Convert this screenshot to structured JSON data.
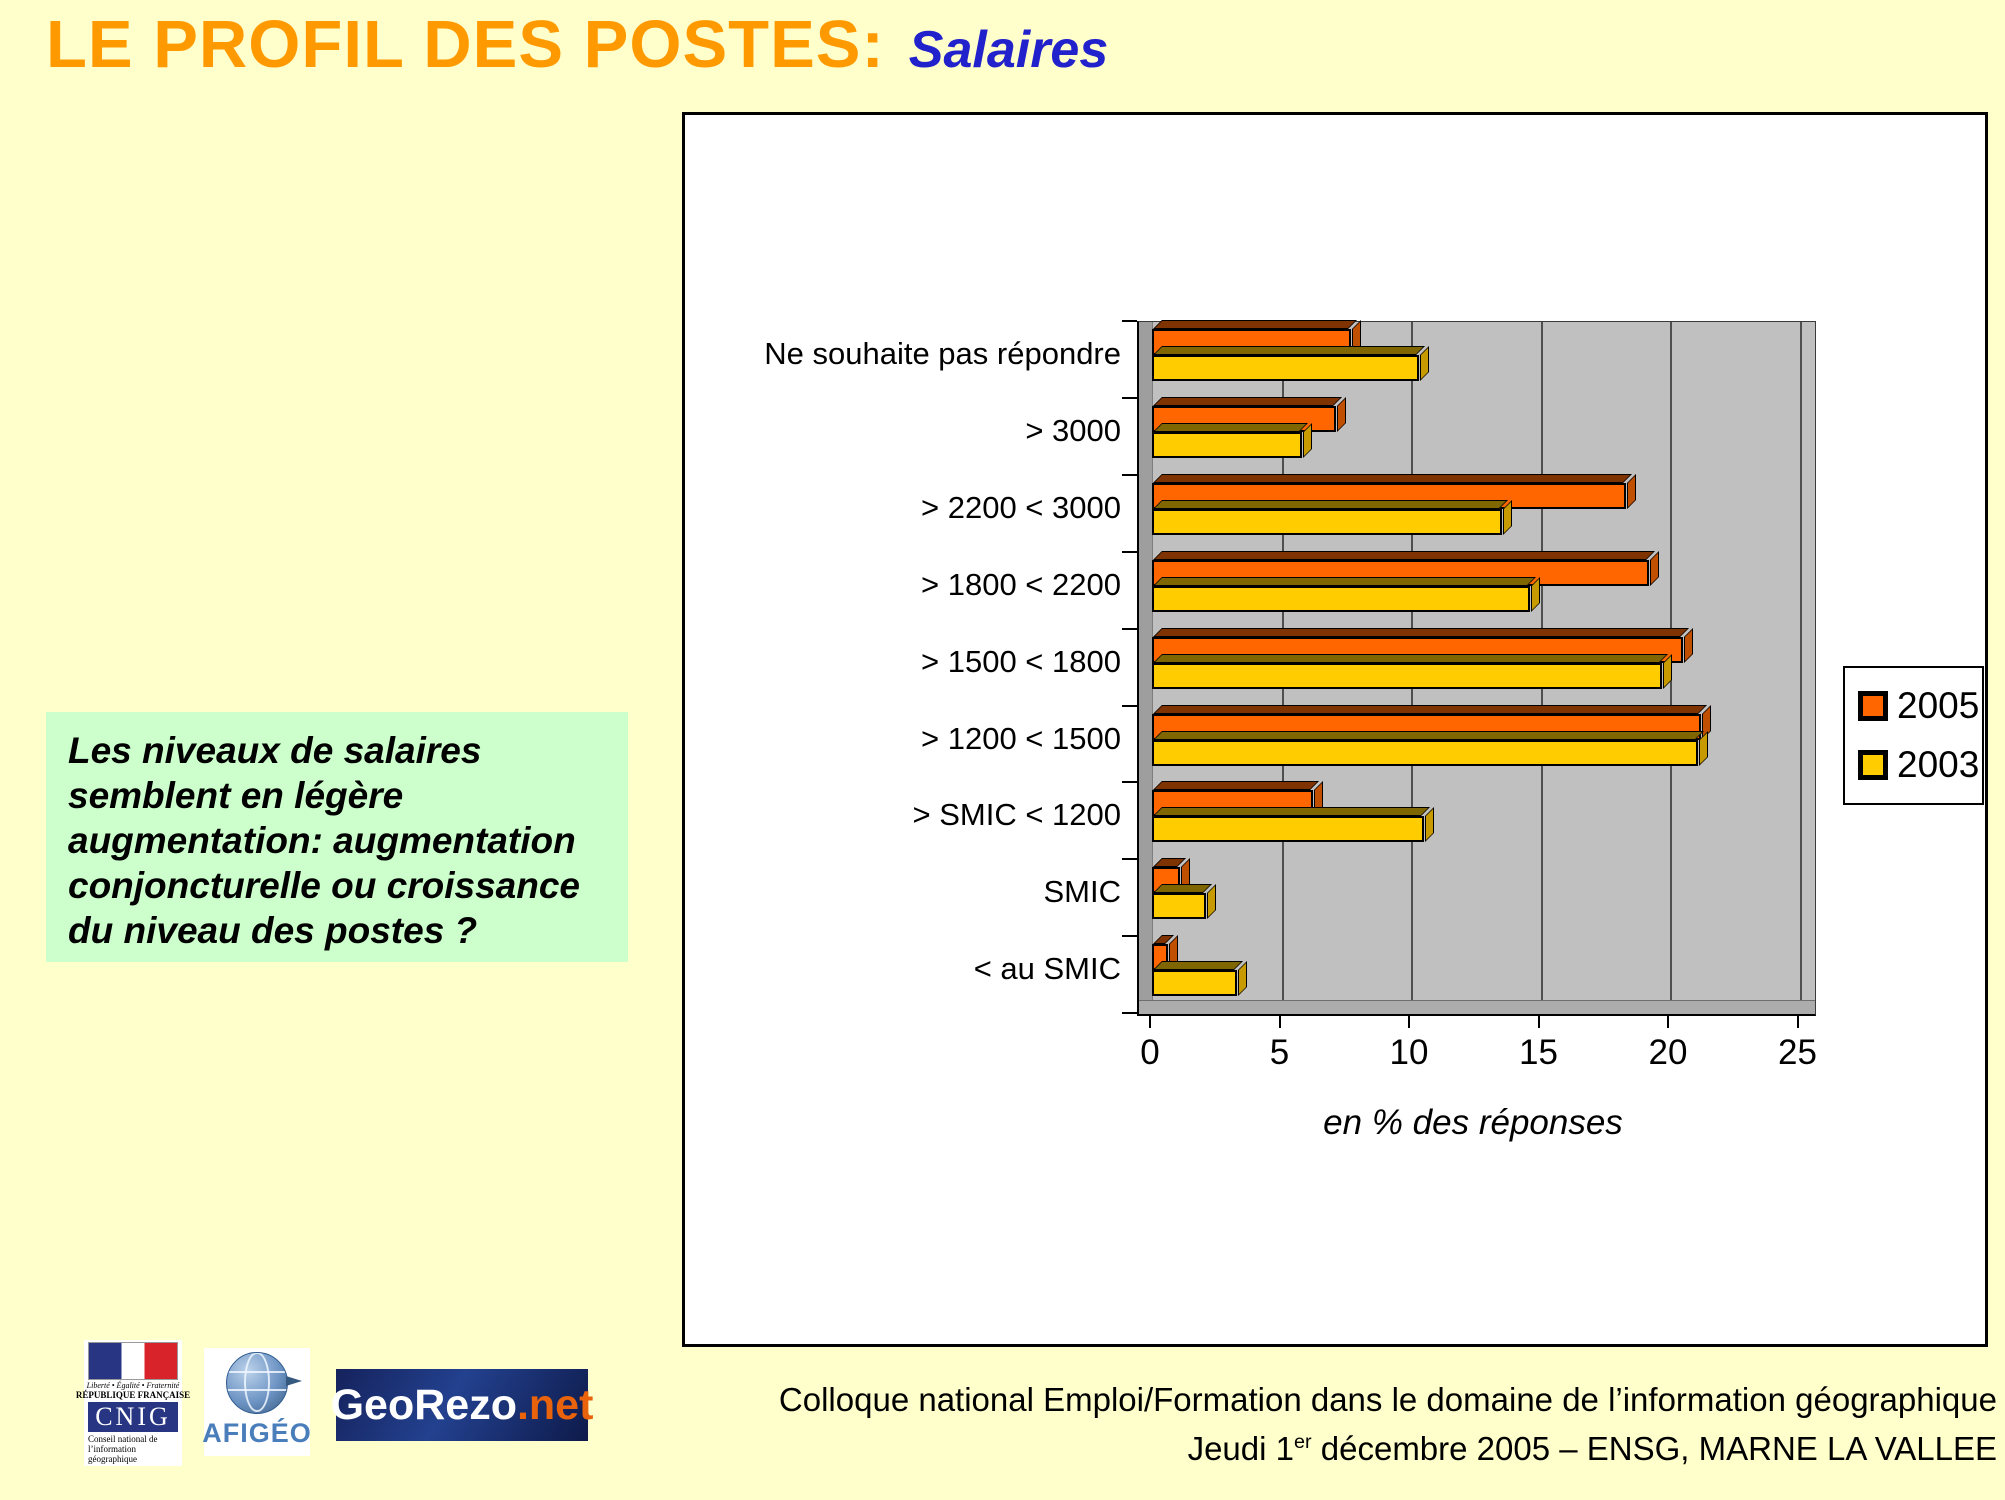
{
  "page": {
    "background": "#FFFFCC"
  },
  "header": {
    "title": "LE PROFIL DES POSTES:",
    "subtitle": "Salaires",
    "title_color": "#FF9900",
    "subtitle_color": "#2222CC"
  },
  "note_box": {
    "background": "#CCFFCC",
    "lines": [
      "Les niveaux de salaires",
      "semblent en légère",
      "augmentation: augmentation",
      "conjoncturelle ou croissance",
      "du niveau des postes ?"
    ]
  },
  "chart_data": {
    "type": "bar",
    "orientation": "horizontal",
    "title": "",
    "xlabel": "en % des réponses",
    "xlim": [
      0,
      25
    ],
    "xticks": [
      0,
      5,
      10,
      15,
      20,
      25
    ],
    "grid": true,
    "plot_background": "#C0C0C0",
    "legend_position": "right",
    "categories": [
      "Ne souhaite pas répondre",
      "> 3000",
      "> 2200 < 3000",
      "> 1800 < 2200",
      "> 1500 < 1800",
      "> 1200 < 1500",
      "> SMIC < 1200",
      "SMIC",
      "< au SMIC"
    ],
    "series": [
      {
        "name": "2005",
        "color": "#FF6600",
        "color_top": "#7F3300",
        "color_side": "#C05000",
        "values": [
          7.7,
          7.1,
          18.3,
          19.2,
          20.5,
          21.2,
          6.2,
          1.1,
          0.6
        ]
      },
      {
        "name": "2003",
        "color": "#FFCC00",
        "color_top": "#7F6600",
        "color_side": "#C79B00",
        "values": [
          10.3,
          5.8,
          13.5,
          14.6,
          19.7,
          21.1,
          10.5,
          2.1,
          3.3
        ]
      }
    ]
  },
  "logos": {
    "cnig": {
      "motto": "Liberté • Égalité • Fraternité",
      "republic": "RÉPUBLIQUE FRANÇAISE",
      "acronym": "CNIG",
      "caption": "Conseil national de l’information géographique"
    },
    "afigeo": {
      "name": "AFIGÉO"
    },
    "georezo": {
      "name": "GeoRezo",
      "tld": ".net"
    }
  },
  "footer": {
    "line1": "Colloque national Emploi/Formation dans le domaine de l’information géographique",
    "line2_prefix": "Jeudi 1",
    "line2_sup": "er",
    "line2_suffix": " décembre 2005 – ENSG, MARNE LA VALLEE"
  }
}
